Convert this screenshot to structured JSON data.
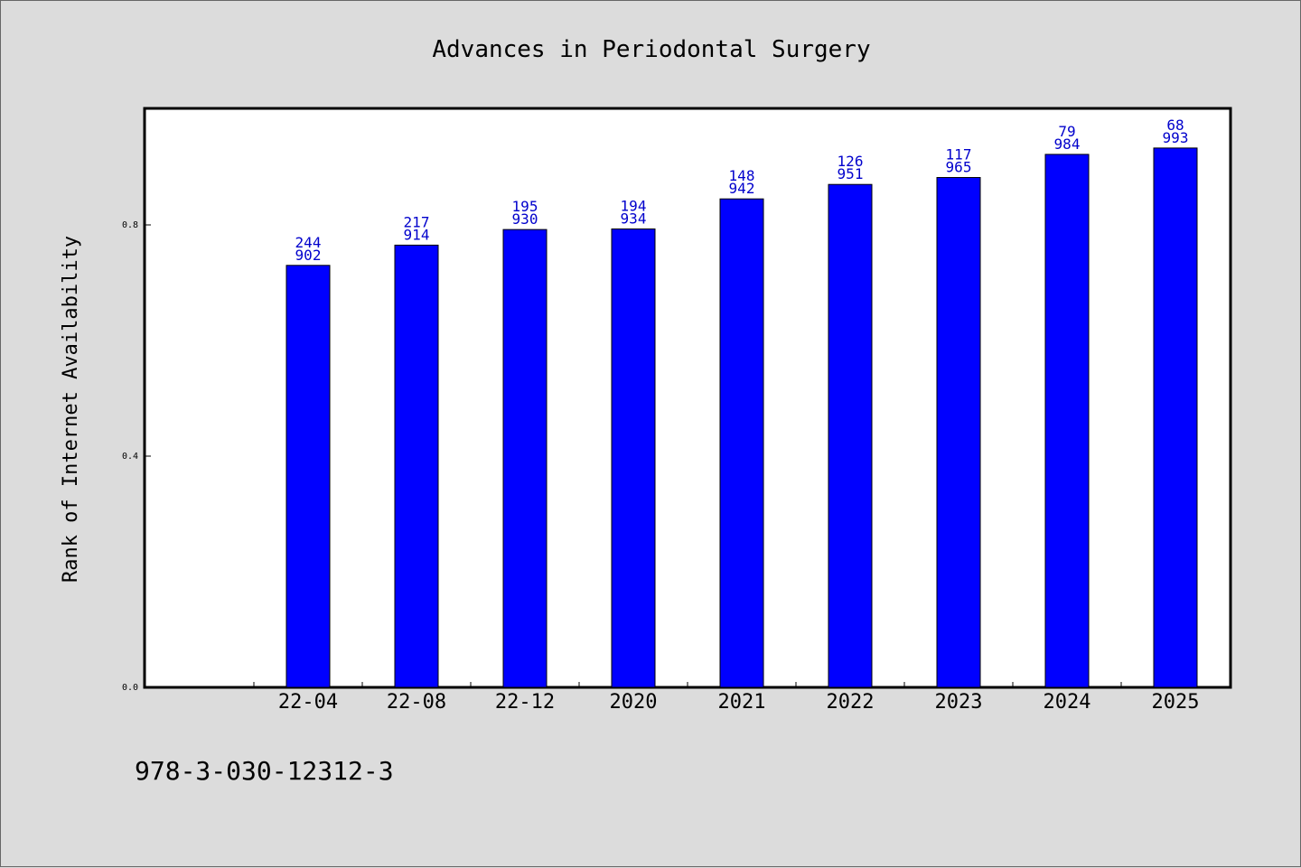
{
  "chart_data": {
    "type": "bar",
    "title": "Advances in Periodontal Surgery",
    "ylabel": "Rank of Internet Availability",
    "xlabel": "",
    "categories": [
      "22-04",
      "22-08",
      "22-12",
      "2020",
      "2021",
      "2022",
      "2023",
      "2024",
      "2025"
    ],
    "values": [
      0.73,
      0.765,
      0.792,
      0.793,
      0.845,
      0.87,
      0.882,
      0.922,
      0.933
    ],
    "label_top": [
      "244",
      "217",
      "195",
      "194",
      "148",
      "126",
      "117",
      "79",
      "68"
    ],
    "label_bottom": [
      "902",
      "914",
      "930",
      "934",
      "942",
      "951",
      "965",
      "984",
      "993"
    ],
    "yticks": [
      "0.0",
      "0.4",
      "0.8"
    ],
    "ytick_values": [
      0.0,
      0.4,
      0.8
    ],
    "ylim": [
      0,
      1.0
    ],
    "grid": false,
    "legend": "none",
    "bar_color": "#0000ff",
    "label_color": "#0000cc"
  },
  "footer": {
    "isbn": "978-3-030-12312-3"
  }
}
